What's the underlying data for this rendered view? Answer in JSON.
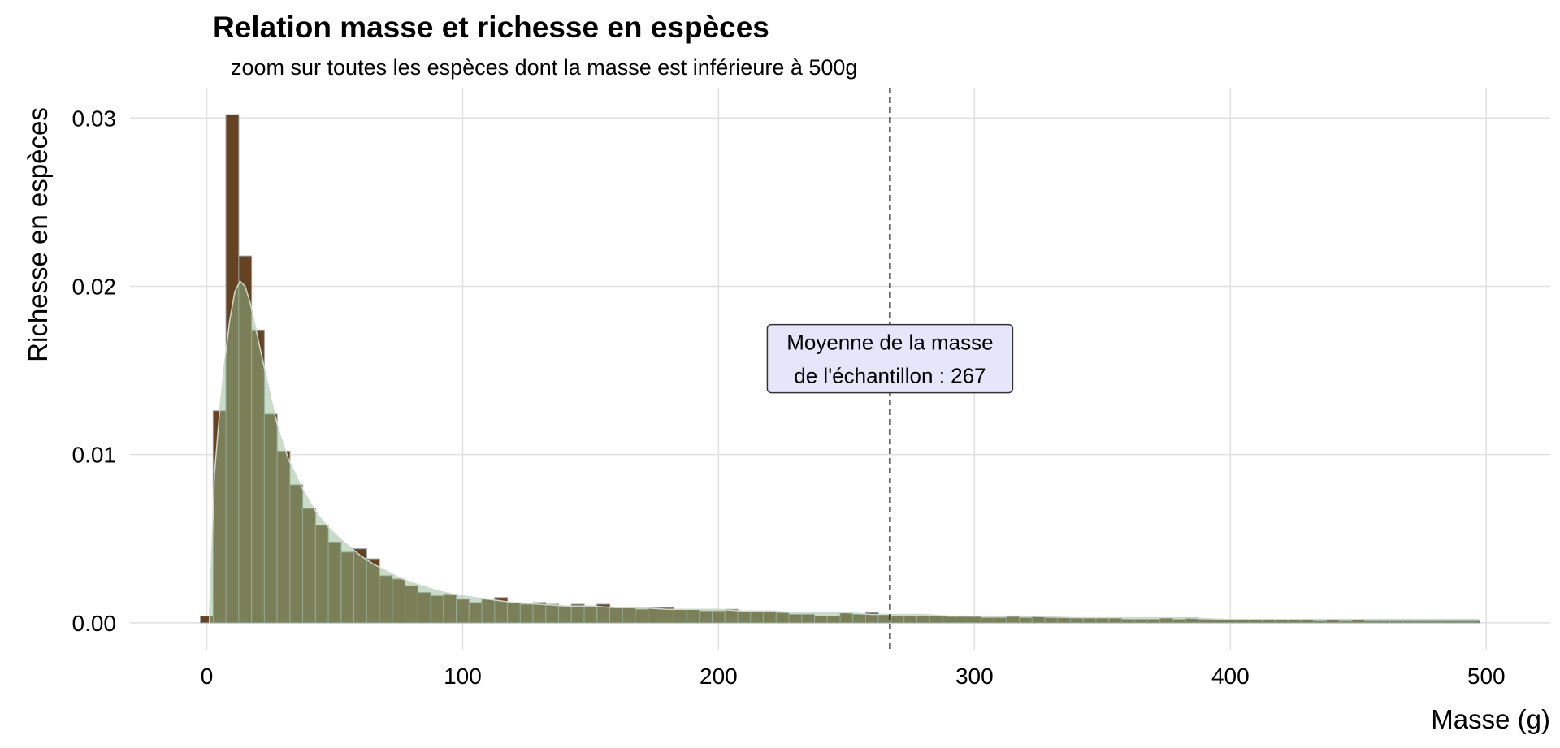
{
  "chart_data": {
    "type": "bar",
    "title": "Relation masse et richesse en espèces",
    "subtitle": "zoom sur toutes les espèces dont la masse est inférieure à 500g",
    "xlabel": "Masse (g)",
    "ylabel": "Richesse en espèces",
    "xlim": [
      -30,
      525
    ],
    "ylim": [
      -0.0016,
      0.0318
    ],
    "x_ticks": [
      0,
      100,
      200,
      300,
      400,
      500
    ],
    "x_tick_labels": [
      "0",
      "100",
      "200",
      "300",
      "400",
      "500"
    ],
    "y_ticks": [
      0.0,
      0.01,
      0.02,
      0.03
    ],
    "y_tick_labels": [
      "0.00",
      "0.01",
      "0.02",
      "0.03"
    ],
    "grid": true,
    "colors": {
      "bar_fill": "#654321",
      "bar_outline": "#999999",
      "density_fill": "#8fbc8f",
      "density_alpha": 0.5,
      "density_line": "#cfd8cf",
      "mean_line": "#000000",
      "label_fill": "#e6e6fa"
    },
    "histogram": {
      "bin_width": 5,
      "bin_centers": [
        0,
        5,
        10,
        15,
        20,
        25,
        30,
        35,
        40,
        45,
        50,
        55,
        60,
        65,
        70,
        75,
        80,
        85,
        90,
        95,
        100,
        105,
        110,
        115,
        120,
        125,
        130,
        135,
        140,
        145,
        150,
        155,
        160,
        165,
        170,
        175,
        180,
        185,
        190,
        195,
        200,
        205,
        210,
        215,
        220,
        225,
        230,
        235,
        240,
        245,
        250,
        255,
        260,
        265,
        270,
        275,
        280,
        285,
        290,
        295,
        300,
        305,
        310,
        315,
        320,
        325,
        330,
        335,
        340,
        345,
        350,
        355,
        360,
        365,
        370,
        375,
        380,
        385,
        390,
        395,
        400,
        405,
        410,
        415,
        420,
        425,
        430,
        435,
        440,
        445,
        450,
        455,
        460,
        465,
        470,
        475,
        480,
        485,
        490,
        495
      ],
      "values": [
        0.0004,
        0.0126,
        0.0302,
        0.0218,
        0.0174,
        0.0124,
        0.0102,
        0.0082,
        0.0068,
        0.0058,
        0.0048,
        0.0042,
        0.0044,
        0.0038,
        0.0028,
        0.0026,
        0.0022,
        0.0018,
        0.0016,
        0.0017,
        0.0014,
        0.0012,
        0.0014,
        0.0015,
        0.0012,
        0.0011,
        0.0012,
        0.0011,
        0.001,
        0.0011,
        0.001,
        0.0011,
        0.0009,
        0.0009,
        0.0008,
        0.0009,
        0.0009,
        0.0008,
        0.0008,
        0.0007,
        0.0007,
        0.0008,
        0.0007,
        0.0007,
        0.0007,
        0.0006,
        0.0005,
        0.0005,
        0.0004,
        0.0004,
        0.0006,
        0.0005,
        0.0006,
        0.0005,
        0.0004,
        0.0004,
        0.0004,
        0.0004,
        0.0004,
        0.0004,
        0.0004,
        0.0003,
        0.0003,
        0.0004,
        0.0003,
        0.0004,
        0.0003,
        0.0003,
        0.0003,
        0.0003,
        0.0003,
        0.0003,
        0.0002,
        0.0002,
        0.0002,
        0.0003,
        0.0002,
        0.0003,
        0.0002,
        0.0002,
        0.0002,
        0.0002,
        0.0002,
        0.0002,
        0.0002,
        0.0002,
        0.0002,
        0.0001,
        0.0002,
        0.0001,
        0.0002,
        0.0001,
        0.0001,
        0.0001,
        0.0001,
        0.0001,
        0.0001,
        0.0001,
        0.0001,
        0.0001
      ]
    },
    "density": {
      "x": [
        1,
        3,
        5,
        7,
        9,
        11,
        13,
        15,
        17,
        19,
        21,
        23,
        25,
        27,
        29,
        32,
        35,
        38,
        41,
        44,
        48,
        52,
        56,
        60,
        65,
        70,
        75,
        80,
        90,
        100,
        110,
        120,
        130,
        140,
        150,
        160,
        170,
        180,
        190,
        200,
        210,
        220,
        230,
        240,
        250,
        260,
        270,
        280,
        290,
        300,
        320,
        340,
        360,
        380,
        400,
        420,
        440,
        460,
        480,
        497
      ],
      "y": [
        0.0,
        0.0088,
        0.0125,
        0.0155,
        0.018,
        0.0197,
        0.0203,
        0.02,
        0.019,
        0.0176,
        0.0162,
        0.0148,
        0.0134,
        0.0121,
        0.011,
        0.0097,
        0.0087,
        0.0078,
        0.007,
        0.0063,
        0.0056,
        0.005,
        0.0045,
        0.004,
        0.0035,
        0.0031,
        0.0027,
        0.0024,
        0.0019,
        0.0016,
        0.0014,
        0.0012,
        0.0011,
        0.001,
        0.001,
        0.0009,
        0.0009,
        0.0008,
        0.0008,
        0.0008,
        0.0007,
        0.0007,
        0.0006,
        0.0006,
        0.0006,
        0.0005,
        0.0005,
        0.0005,
        0.0004,
        0.0004,
        0.0004,
        0.0003,
        0.0003,
        0.0003,
        0.0002,
        0.0002,
        0.0002,
        0.0002,
        0.0002,
        0.0002
      ]
    },
    "mean_line": {
      "x": 267,
      "style": "dashed"
    },
    "annotation": {
      "lines": [
        "Moyenne de la masse",
        "de l'échantillon : 267"
      ],
      "x": 267,
      "y": 0.0157
    }
  }
}
